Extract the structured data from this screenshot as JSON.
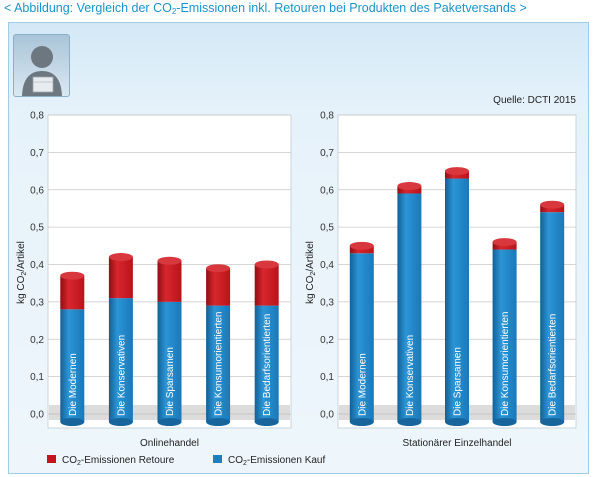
{
  "header": {
    "prefix": "< Abbildung: Vergleich der CO",
    "sub": "2",
    "suffix": "-Emissionen inkl. Retouren bei Produkten des Paketversands >"
  },
  "source": "Quelle: DCTI 2015",
  "colors": {
    "retoure": "#c4151c",
    "kauf": "#1b7fc3",
    "header": "#1b93c9"
  },
  "legend": {
    "retoure_prefix": "CO",
    "retoure_sub": "2",
    "retoure_suffix": "-Emissionen Retoure",
    "kauf_prefix": "CO",
    "kauf_sub": "2",
    "kauf_suffix": "-Emissionen Kauf"
  },
  "chart_data": [
    {
      "type": "bar",
      "stacked": true,
      "xlabel": "Onlinehandel",
      "ylabel_prefix": "kg CO",
      "ylabel_sub": "2",
      "ylabel_suffix": "/Artikel",
      "ylim": [
        0,
        0.8
      ],
      "yticks": [
        "0,0",
        "0,1",
        "0,2",
        "0,3",
        "0,4",
        "0,5",
        "0,6",
        "0,7",
        "0,8"
      ],
      "grid": true,
      "categories": [
        "Die Modernen",
        "Die Konservativen",
        "Die Sparsamen",
        "Die Konsumorientierten",
        "Die Bedarfsorientierten"
      ],
      "series": [
        {
          "name": "CO2-Emissionen Kauf",
          "values": [
            0.28,
            0.31,
            0.3,
            0.29,
            0.29
          ]
        },
        {
          "name": "CO2-Emissionen Retoure",
          "values": [
            0.09,
            0.11,
            0.11,
            0.1,
            0.11
          ]
        }
      ]
    },
    {
      "type": "bar",
      "stacked": true,
      "xlabel": "Stationärer Einzelhandel",
      "ylabel_prefix": "kg CO",
      "ylabel_sub": "2",
      "ylabel_suffix": "/Artikel",
      "ylim": [
        0,
        0.8
      ],
      "yticks": [
        "0,0",
        "0,1",
        "0,2",
        "0,3",
        "0,4",
        "0,5",
        "0,6",
        "0,7",
        "0,8"
      ],
      "grid": true,
      "categories": [
        "Die Modernen",
        "Die Konservativen",
        "Die Sparsamen",
        "Die Konsumorientierten",
        "Die Bedarfsorientierten"
      ],
      "series": [
        {
          "name": "CO2-Emissionen Kauf",
          "values": [
            0.43,
            0.59,
            0.63,
            0.44,
            0.54
          ]
        },
        {
          "name": "CO2-Emissionen Retoure",
          "values": [
            0.02,
            0.02,
            0.02,
            0.02,
            0.02
          ]
        }
      ]
    }
  ]
}
